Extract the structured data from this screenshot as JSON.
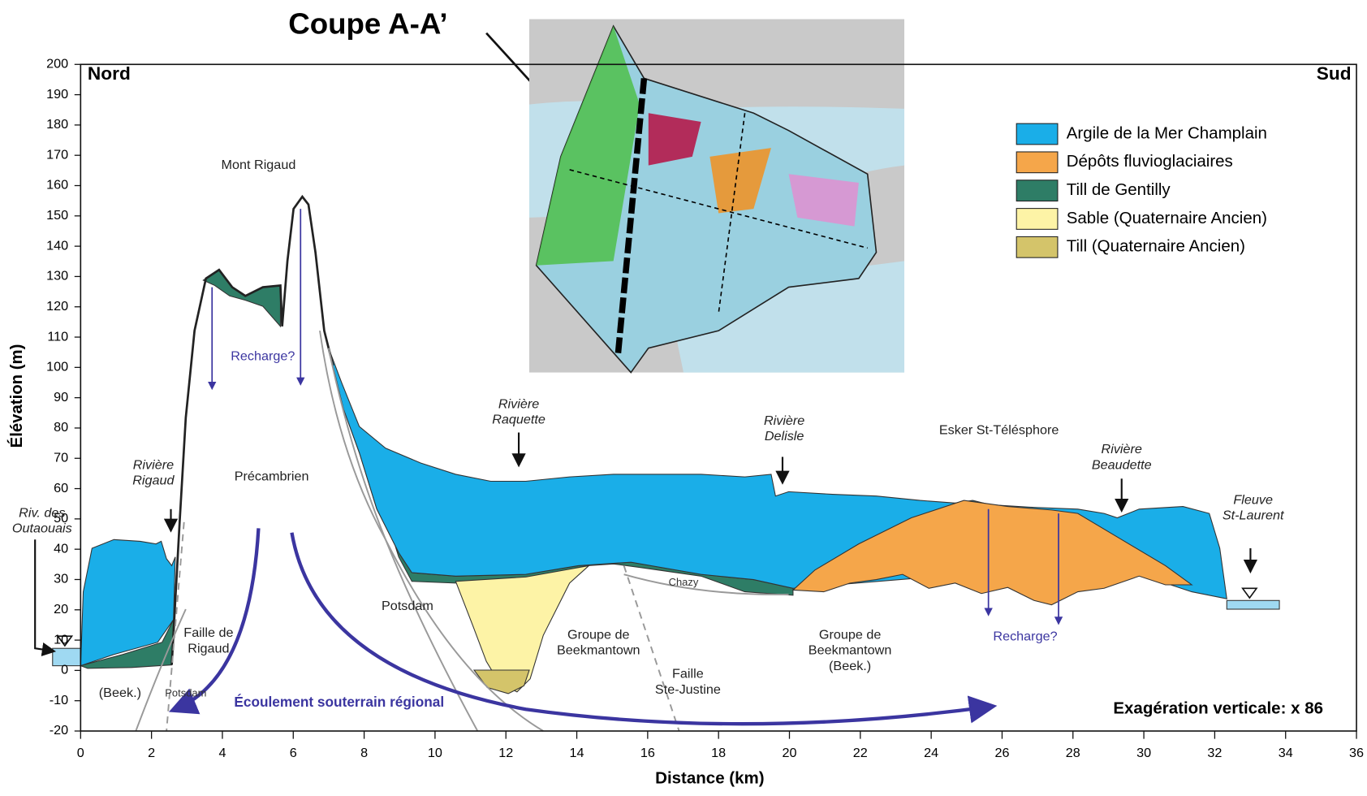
{
  "title": "Coupe A-A’",
  "corners": {
    "left": "Nord",
    "right": "Sud"
  },
  "axes": {
    "xlabel": "Distance (km)",
    "ylabel": "Élévation (m)",
    "xlim": [
      0,
      36
    ],
    "ylim": [
      -20,
      200
    ],
    "xticks": [
      0,
      2,
      4,
      6,
      8,
      10,
      12,
      14,
      16,
      18,
      20,
      22,
      24,
      26,
      28,
      30,
      32,
      34,
      36
    ],
    "yticks": [
      -20,
      -10,
      0,
      10,
      20,
      30,
      40,
      50,
      60,
      70,
      80,
      90,
      100,
      110,
      120,
      130,
      140,
      150,
      160,
      170,
      180,
      190,
      200
    ]
  },
  "legend": [
    {
      "label": "Argile de la Mer Champlain",
      "color": "#1aaee8"
    },
    {
      "label": "Dépôts fluvioglaciaires",
      "color": "#f5a64a"
    },
    {
      "label": "Till de Gentilly",
      "color": "#2e7d66"
    },
    {
      "label": "Sable (Quaternaire Ancien)",
      "color": "#fdf3a6"
    },
    {
      "label": "Till (Quaternaire Ancien)",
      "color": "#d4c46a"
    }
  ],
  "annotations": [
    {
      "lines": [
        "Mont Rigaud"
      ],
      "style": "normal"
    },
    {
      "lines": [
        "Recharge?"
      ],
      "style": "recharge"
    },
    {
      "lines": [
        "Rivière",
        "Rigaud"
      ],
      "style": "italic"
    },
    {
      "lines": [
        "Riv. des",
        "Outaouais"
      ],
      "style": "italic"
    },
    {
      "lines": [
        "Précambrien"
      ],
      "style": "normal"
    },
    {
      "lines": [
        "Faille de",
        "Rigaud"
      ],
      "style": "normal"
    },
    {
      "lines": [
        "(Beek.)"
      ],
      "style": "normal"
    },
    {
      "lines": [
        "Potsdam"
      ],
      "style": "small"
    },
    {
      "lines": [
        "Écoulement souterrain régional"
      ],
      "style": "flow"
    },
    {
      "lines": [
        "Potsdam"
      ],
      "style": "normal"
    },
    {
      "lines": [
        "Groupe de",
        "Beekmantown"
      ],
      "style": "normal"
    },
    {
      "lines": [
        "Faille",
        "Ste-Justine"
      ],
      "style": "normal"
    },
    {
      "lines": [
        "Rivière",
        "Raquette"
      ],
      "style": "italic"
    },
    {
      "lines": [
        "Chazy"
      ],
      "style": "small"
    },
    {
      "lines": [
        "Rivière",
        "Delisle"
      ],
      "style": "italic"
    },
    {
      "lines": [
        "Esker St-Télésphore"
      ],
      "style": "normal"
    },
    {
      "lines": [
        "Groupe de",
        "Beekmantown",
        "(Beek.)"
      ],
      "style": "normal"
    },
    {
      "lines": [
        "Recharge?"
      ],
      "style": "recharge"
    },
    {
      "lines": [
        "Rivière",
        "Beaudette"
      ],
      "style": "italic"
    },
    {
      "lines": [
        "Fleuve",
        "St-Laurent"
      ],
      "style": "italic"
    }
  ],
  "note": "Exagération verticale: x 86"
}
